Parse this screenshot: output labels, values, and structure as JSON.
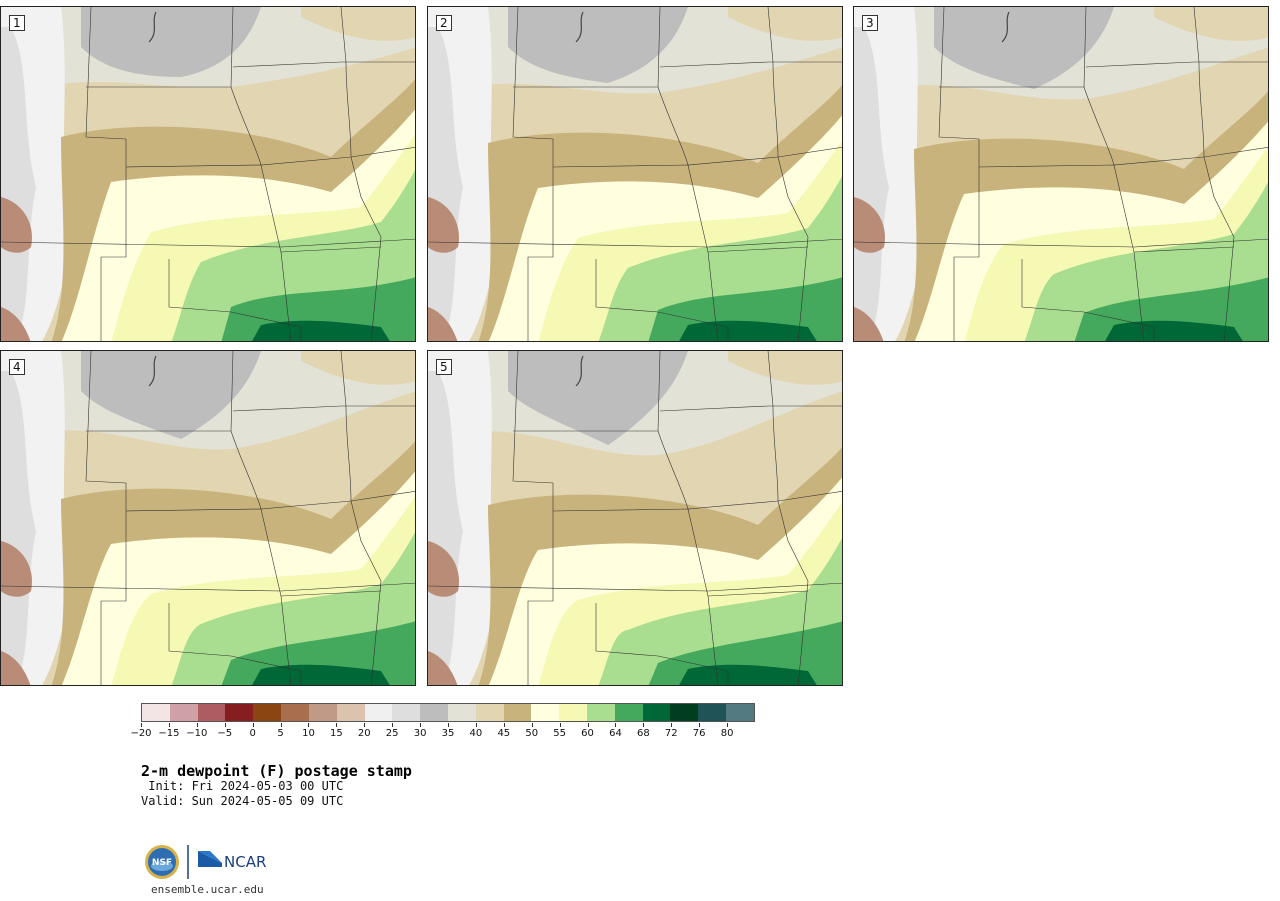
{
  "panels": [
    {
      "label": "1",
      "variant": 1
    },
    {
      "label": "2",
      "variant": 2
    },
    {
      "label": "3",
      "variant": 3
    },
    {
      "label": "4",
      "variant": 4
    },
    {
      "label": "5",
      "variant": 5
    }
  ],
  "colorbar": {
    "colors": [
      "#f3e4e6",
      "#d0a0a7",
      "#ad5c62",
      "#861d21",
      "#8b4513",
      "#a86f4e",
      "#c09a86",
      "#dcc3b0",
      "#f0f0f0",
      "#dedede",
      "#bdbdbd",
      "#e3e2d6",
      "#e2d5b1",
      "#c9b37c",
      "#ffffe0",
      "#f5f9b4",
      "#a9dd8f",
      "#44a95d",
      "#006837",
      "#003d21",
      "#1f5357",
      "#527a80"
    ],
    "tick_labels": [
      "−20",
      "−15",
      "−10",
      "−5",
      "0",
      "5",
      "10",
      "15",
      "20",
      "25",
      "30",
      "35",
      "40",
      "45",
      "50",
      "55",
      "60",
      "64",
      "68",
      "72",
      "76",
      "80"
    ]
  },
  "title": "2-m dewpoint (F) postage stamp",
  "init_line": " Init: Fri 2024-05-03 00 UTC",
  "valid_line": "Valid: Sun 2024-05-05 09 UTC",
  "logos": {
    "nsf": "NSF",
    "ncar": "NCAR"
  },
  "site": "ensemble.ucar.edu"
}
